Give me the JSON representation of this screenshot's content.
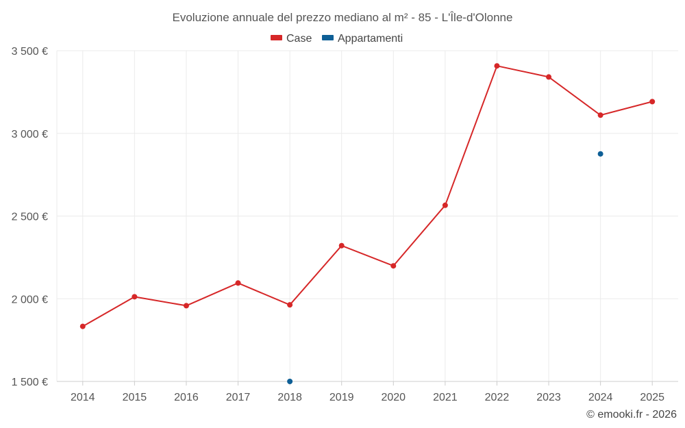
{
  "chart_data": {
    "type": "line",
    "title": "Evoluzione annuale del prezzo mediano al m² - 85 - L'Île-d'Olonne",
    "xlabel": "",
    "ylabel": "",
    "categories": [
      "2014",
      "2015",
      "2016",
      "2017",
      "2018",
      "2019",
      "2020",
      "2021",
      "2022",
      "2023",
      "2024",
      "2025"
    ],
    "ylim": [
      1500,
      3500
    ],
    "yticks": [
      {
        "value": 1500,
        "label": "1 500 €"
      },
      {
        "value": 2000,
        "label": "2 000 €"
      },
      {
        "value": 2500,
        "label": "2 500 €"
      },
      {
        "value": 3000,
        "label": "3 000 €"
      },
      {
        "value": 3500,
        "label": "3 500 €"
      }
    ],
    "grid": true,
    "legend_position": "top-center",
    "series": [
      {
        "name": "Case",
        "color": "#d62728",
        "style": "line-with-markers",
        "values": [
          1833,
          2012,
          1958,
          2095,
          1963,
          2321,
          2199,
          2565,
          3408,
          3341,
          3110,
          3192
        ]
      },
      {
        "name": "Appartamenti",
        "color": "#0e5f96",
        "style": "markers",
        "values": [
          null,
          null,
          null,
          null,
          1500,
          null,
          null,
          null,
          null,
          null,
          2876,
          null
        ]
      }
    ]
  },
  "credit": "© emooki.fr - 2026"
}
